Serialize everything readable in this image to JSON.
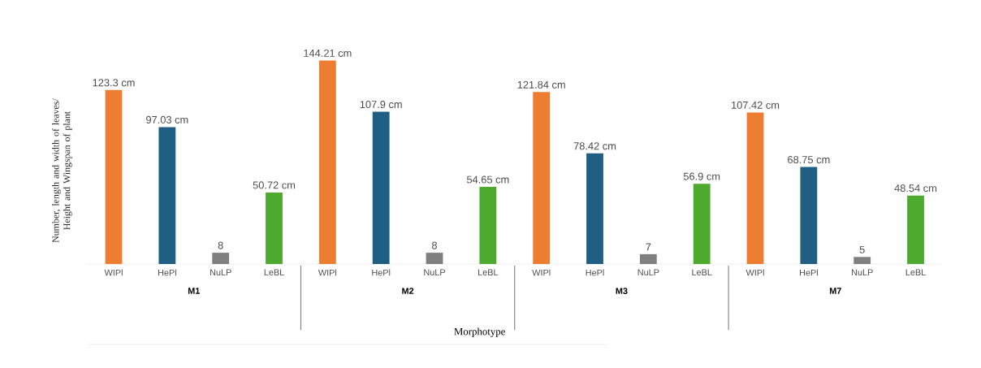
{
  "chart_data": {
    "type": "bar",
    "xlabel": "Morphotype",
    "ylabel": "Number, length and width of leaves/ Height and Wingspan of plant",
    "categories": [
      "M1",
      "M2",
      "M3",
      "M7"
    ],
    "series": [
      {
        "name": "WIPl",
        "color": "#ed7d31",
        "values": [
          123.3,
          144.21,
          121.84,
          107.42
        ],
        "value_labels": [
          "123.3 cm",
          "144.21 cm",
          "121.84 cm",
          "107.42 cm"
        ]
      },
      {
        "name": "HePl",
        "color": "#1f5f84",
        "values": [
          97.03,
          107.9,
          78.42,
          68.75
        ],
        "value_labels": [
          "97.03 cm",
          "107.9 cm",
          "78.42 cm",
          "68.75 cm"
        ]
      },
      {
        "name": "NuLP",
        "color": "#7f7f7f",
        "values": [
          8,
          8,
          7,
          5
        ],
        "value_labels": [
          "8",
          "8",
          "7",
          "5"
        ]
      },
      {
        "name": "LeBL",
        "color": "#4eaa2f",
        "values": [
          50.72,
          54.65,
          56.9,
          48.54
        ],
        "value_labels": [
          "50.72 cm",
          "54.65 cm",
          "56.9 cm",
          "48.54 cm"
        ]
      }
    ]
  }
}
